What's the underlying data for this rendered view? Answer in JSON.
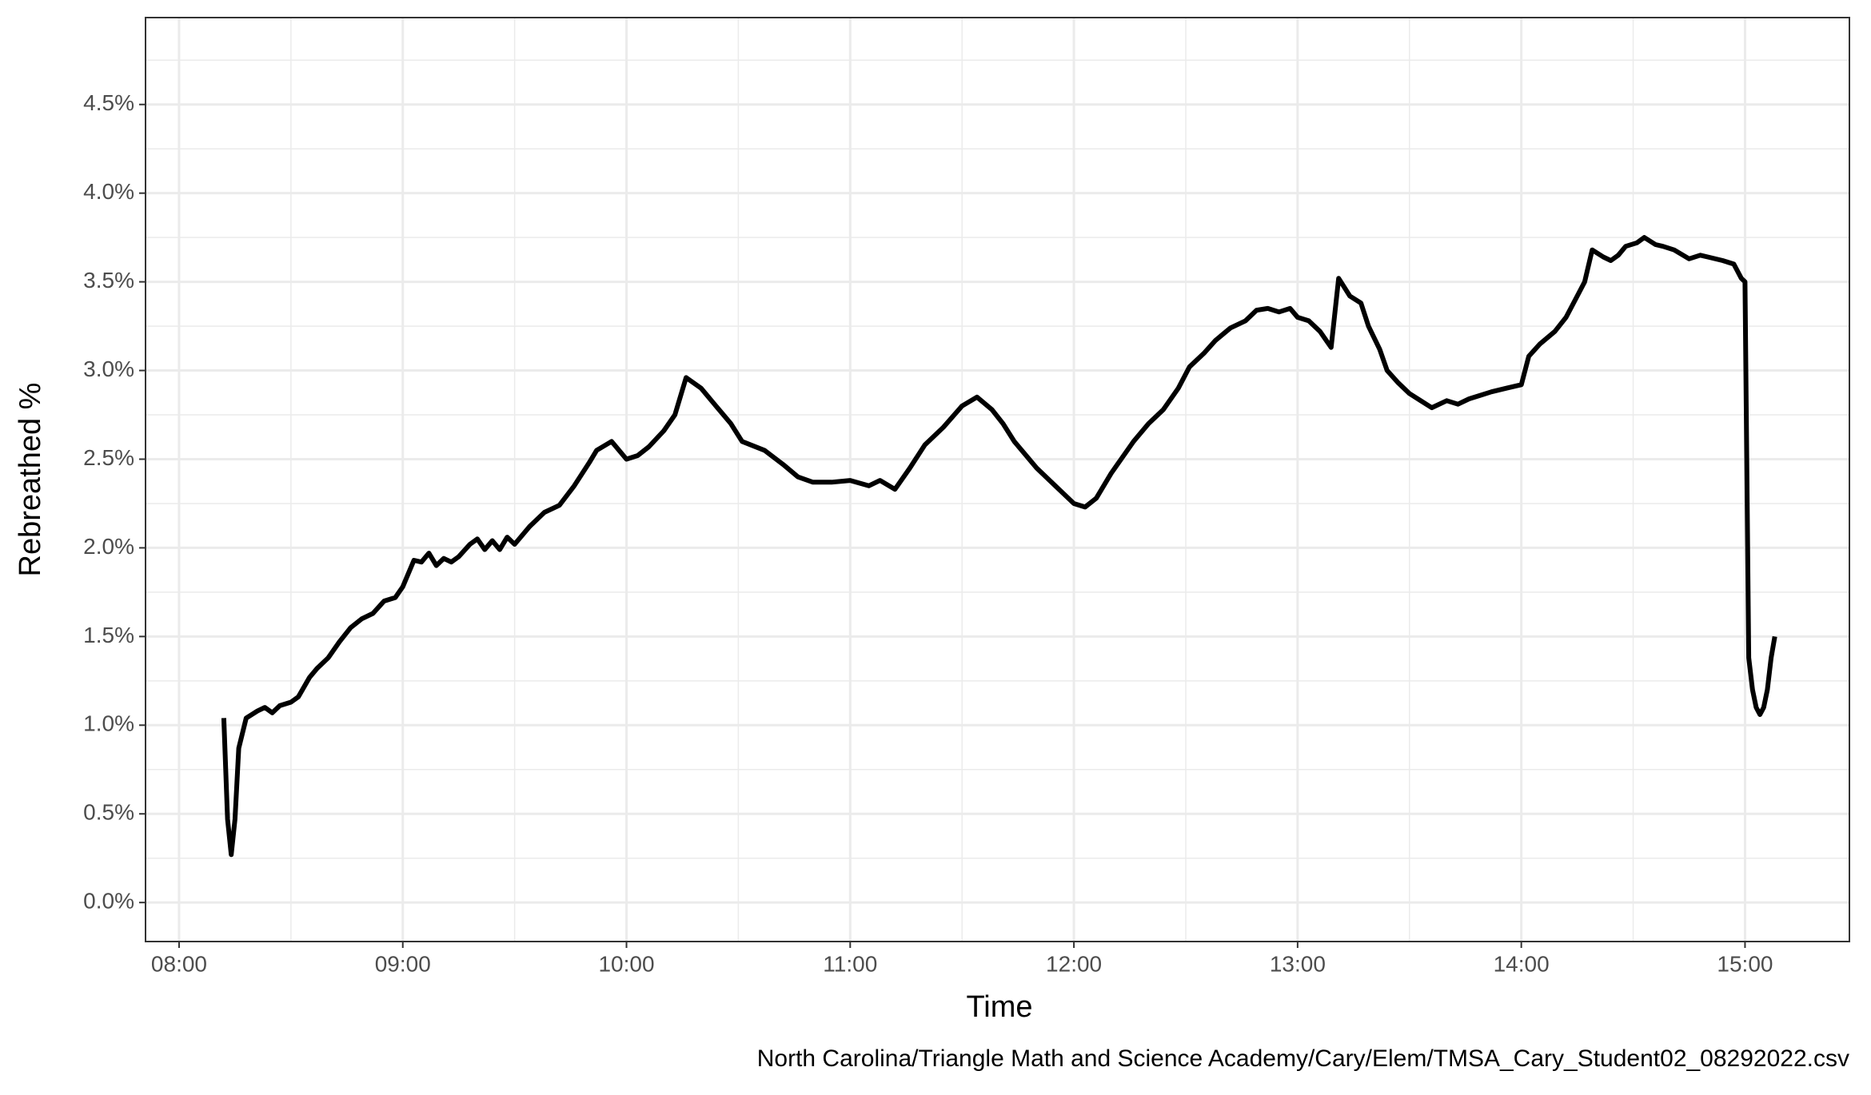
{
  "chart_data": {
    "type": "line",
    "x_label": "Time",
    "y_label": "Rebreathed %",
    "caption": "North Carolina/Triangle Math and Science Academy/Cary/Elem/TMSA_Cary_Student02_08292022.csv",
    "xlim": [
      "07:51",
      "15:28"
    ],
    "xticks": [
      "08:00",
      "09:00",
      "10:00",
      "11:00",
      "12:00",
      "13:00",
      "14:00",
      "15:00"
    ],
    "ylim": [
      -0.22,
      4.99
    ],
    "yticks": [
      {
        "value": 0,
        "label": "0.0%"
      },
      {
        "value": 0.5,
        "label": "0.5%"
      },
      {
        "value": 1,
        "label": "1.0%"
      },
      {
        "value": 1.5,
        "label": "1.5%"
      },
      {
        "value": 2,
        "label": "2.0%"
      },
      {
        "value": 2.5,
        "label": "2.5%"
      },
      {
        "value": 3,
        "label": "3.0%"
      },
      {
        "value": 3.5,
        "label": "3.5%"
      },
      {
        "value": 4,
        "label": "4.0%"
      },
      {
        "value": 4.5,
        "label": "4.5%"
      }
    ],
    "grid": true,
    "minor_grid": true,
    "series": [
      {
        "name": "Rebreathed %",
        "color": "#000000",
        "x": [
          "08:12",
          "08:13",
          "08:14",
          "08:15",
          "08:16",
          "08:18",
          "08:21",
          "08:23",
          "08:25",
          "08:27",
          "08:30",
          "08:32",
          "08:35",
          "08:37",
          "08:40",
          "08:43",
          "08:46",
          "08:49",
          "08:52",
          "08:55",
          "08:58",
          "09:00",
          "09:03",
          "09:05",
          "09:07",
          "09:09",
          "09:11",
          "09:13",
          "09:15",
          "09:18",
          "09:20",
          "09:22",
          "09:24",
          "09:26",
          "09:28",
          "09:30",
          "09:34",
          "09:38",
          "09:42",
          "09:46",
          "09:50",
          "09:52",
          "09:56",
          "10:00",
          "10:03",
          "10:06",
          "10:10",
          "10:13",
          "10:16",
          "10:20",
          "10:24",
          "10:28",
          "10:31",
          "10:37",
          "10:42",
          "10:46",
          "10:50",
          "10:55",
          "11:00",
          "11:05",
          "11:08",
          "11:12",
          "11:16",
          "11:20",
          "11:25",
          "11:30",
          "11:34",
          "11:38",
          "11:41",
          "11:44",
          "11:50",
          "11:55",
          "12:00",
          "12:03",
          "12:06",
          "12:10",
          "12:16",
          "12:20",
          "12:24",
          "12:28",
          "12:31",
          "12:35",
          "12:38",
          "12:42",
          "12:46",
          "12:49",
          "12:52",
          "12:55",
          "12:58",
          "13:00",
          "13:03",
          "13:06",
          "13:09",
          "13:11",
          "13:14",
          "13:17",
          "13:19",
          "13:22",
          "13:24",
          "13:27",
          "13:30",
          "13:33",
          "13:36",
          "13:40",
          "13:43",
          "13:46",
          "13:49",
          "13:52",
          "13:56",
          "14:00",
          "14:02",
          "14:05",
          "14:09",
          "14:12",
          "14:15",
          "14:17",
          "14:19",
          "14:22",
          "14:24",
          "14:26",
          "14:28",
          "14:31",
          "14:33",
          "14:36",
          "14:38",
          "14:41",
          "14:45",
          "14:48",
          "14:50",
          "14:54",
          "14:57",
          "14:59",
          "15:00",
          "15:01",
          "15:02",
          "15:03",
          "15:04",
          "15:05",
          "15:06",
          "15:07",
          "15:08"
        ],
        "values": [
          1.04,
          0.47,
          0.27,
          0.47,
          0.87,
          1.04,
          1.08,
          1.1,
          1.07,
          1.11,
          1.13,
          1.16,
          1.27,
          1.32,
          1.38,
          1.47,
          1.55,
          1.6,
          1.63,
          1.7,
          1.72,
          1.78,
          1.93,
          1.92,
          1.97,
          1.9,
          1.94,
          1.92,
          1.95,
          2.02,
          2.05,
          1.99,
          2.04,
          1.99,
          2.06,
          2.02,
          2.12,
          2.2,
          2.24,
          2.35,
          2.48,
          2.55,
          2.6,
          2.5,
          2.52,
          2.57,
          2.66,
          2.75,
          2.96,
          2.9,
          2.8,
          2.7,
          2.6,
          2.55,
          2.47,
          2.4,
          2.37,
          2.37,
          2.38,
          2.35,
          2.38,
          2.33,
          2.45,
          2.58,
          2.68,
          2.8,
          2.85,
          2.78,
          2.7,
          2.6,
          2.45,
          2.35,
          2.25,
          2.23,
          2.28,
          2.42,
          2.6,
          2.7,
          2.78,
          2.9,
          3.02,
          3.1,
          3.17,
          3.24,
          3.28,
          3.34,
          3.35,
          3.33,
          3.35,
          3.3,
          3.28,
          3.22,
          3.13,
          3.52,
          3.42,
          3.38,
          3.25,
          3.12,
          3.0,
          2.93,
          2.87,
          2.83,
          2.79,
          2.83,
          2.81,
          2.84,
          2.86,
          2.88,
          2.9,
          2.92,
          3.08,
          3.15,
          3.22,
          3.3,
          3.42,
          3.5,
          3.68,
          3.64,
          3.62,
          3.65,
          3.7,
          3.72,
          3.75,
          3.71,
          3.7,
          3.68,
          3.63,
          3.65,
          3.64,
          3.62,
          3.6,
          3.52,
          3.5,
          1.38,
          1.2,
          1.1,
          1.06,
          1.1,
          1.2,
          1.38,
          1.5
        ]
      }
    ]
  }
}
